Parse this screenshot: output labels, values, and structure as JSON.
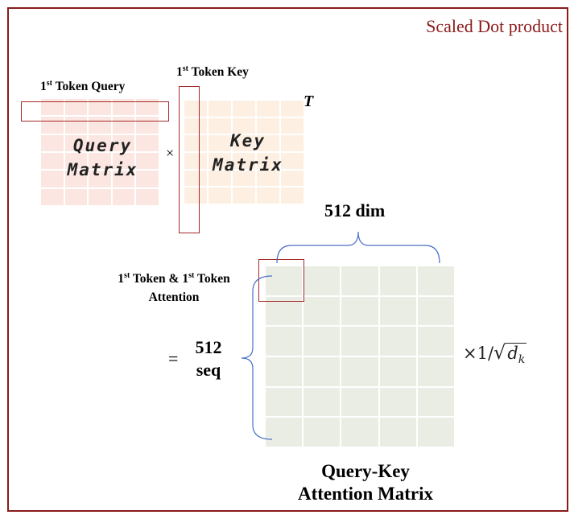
{
  "title": "Scaled Dot product",
  "query": {
    "label_prefix": "1",
    "label_sup": "st",
    "label_suffix": " Token Query",
    "matrix_line1": "Query",
    "matrix_line2": "Matrix"
  },
  "key": {
    "label_prefix": "1",
    "label_sup": "st",
    "label_suffix": " Token Key",
    "matrix_line1": "Key",
    "matrix_line2": "Matrix",
    "transpose": "T"
  },
  "times_symbol": "×",
  "dim_label": "512 dim",
  "attention_label": {
    "part1": "1",
    "sup1": "st",
    "part2": " Token & 1",
    "sup2": "st",
    "part3": " Token",
    "line2": "Attention"
  },
  "equals": "=",
  "seq_label_line1": "512",
  "seq_label_line2": "seq",
  "scale_text": "×1/",
  "scale_var": "d",
  "scale_sub": "k",
  "result_line1": "Query-Key",
  "result_line2": "Attention Matrix",
  "colors": {
    "accent": "#8b1a1a",
    "query_fill": "#fce6e1",
    "key_fill": "#fdf0e2",
    "attention_fill": "#e9ede4",
    "brace": "#4a6fc8"
  }
}
